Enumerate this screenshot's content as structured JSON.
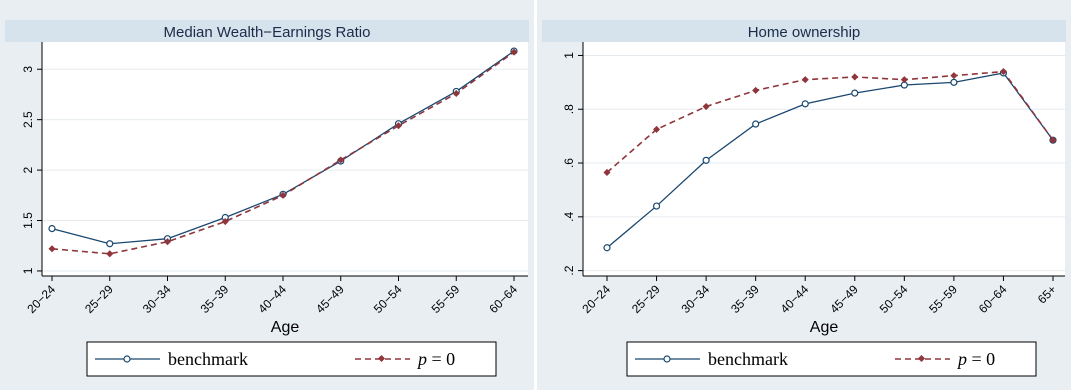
{
  "colors": {
    "benchmark": "#1a476f",
    "p0": "#90353b"
  },
  "chart_data": [
    {
      "type": "line",
      "title": "Median Wealth−Earnings Ratio",
      "xlabel": "Age",
      "ylabel": "",
      "categories": [
        "20−24",
        "25−29",
        "30−34",
        "35−39",
        "40−44",
        "45−49",
        "50−54",
        "55−59",
        "60−64"
      ],
      "yticks": [
        "1",
        "1.5",
        "2",
        "2.5",
        "3"
      ],
      "ytick_values": [
        1,
        1.5,
        2,
        2.5,
        3
      ],
      "ylim": [
        0.95,
        3.27
      ],
      "grid": true,
      "legend_position": "bottom",
      "series": [
        {
          "name": "benchmark",
          "values": [
            1.42,
            1.27,
            1.32,
            1.53,
            1.76,
            2.09,
            2.46,
            2.78,
            3.18
          ]
        },
        {
          "name": "p = 0",
          "values": [
            1.22,
            1.17,
            1.29,
            1.49,
            1.75,
            2.1,
            2.44,
            2.76,
            3.17
          ]
        }
      ]
    },
    {
      "type": "line",
      "title": "Home ownership",
      "xlabel": "Age",
      "ylabel": "",
      "categories": [
        "20−24",
        "25−29",
        "30−34",
        "35−39",
        "40−44",
        "45−49",
        "50−54",
        "55−59",
        "60−64",
        "65+"
      ],
      "yticks": [
        ".2",
        ".4",
        ".6",
        ".8",
        "1"
      ],
      "ytick_values": [
        0.2,
        0.4,
        0.6,
        0.8,
        1.0
      ],
      "ylim": [
        0.18,
        1.05
      ],
      "grid": true,
      "legend_position": "bottom",
      "series": [
        {
          "name": "benchmark",
          "values": [
            0.285,
            0.44,
            0.61,
            0.745,
            0.82,
            0.86,
            0.89,
            0.9,
            0.935,
            0.685
          ]
        },
        {
          "name": "p = 0",
          "values": [
            0.565,
            0.725,
            0.81,
            0.87,
            0.91,
            0.92,
            0.91,
            0.925,
            0.94,
            0.685
          ]
        }
      ]
    }
  ],
  "legend": {
    "benchmark_label": "benchmark",
    "p0_var": "p",
    "p0_rest": " = 0"
  }
}
